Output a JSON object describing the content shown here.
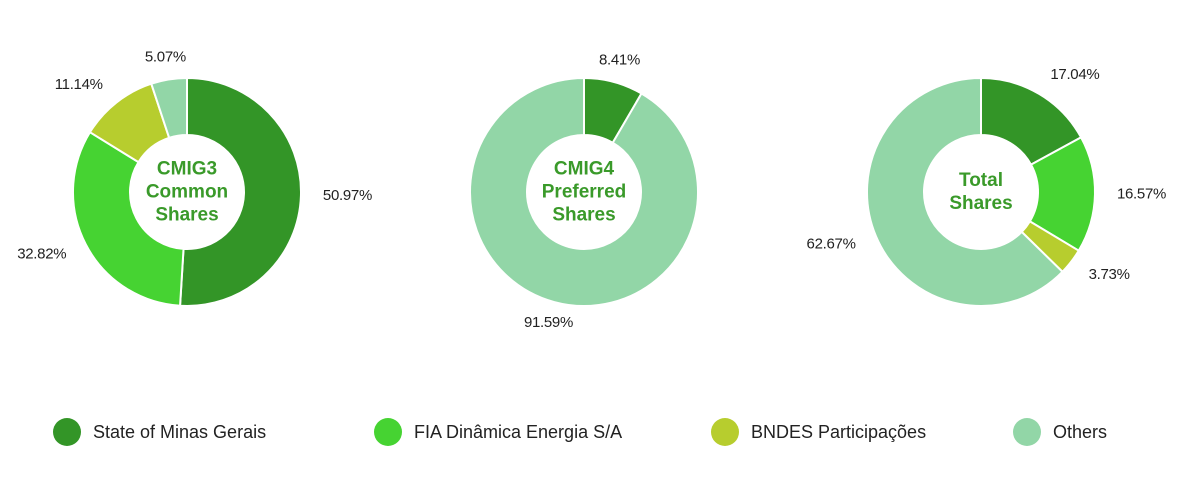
{
  "chart_data": [
    {
      "type": "pie",
      "title": "CMIG3 Common Shares",
      "values": [
        50.97,
        32.82,
        11.14,
        5.07
      ],
      "value_labels": [
        "50.97%",
        "32.82%",
        "11.14%",
        "5.07%"
      ]
    },
    {
      "type": "pie",
      "title": "CMIG4 Preferred Shares",
      "values": [
        8.41,
        null,
        null,
        91.59
      ],
      "value_labels": [
        "8.41%",
        null,
        null,
        "91.59%"
      ]
    },
    {
      "type": "pie",
      "title": "Total Shares",
      "values": [
        17.04,
        16.57,
        3.73,
        62.67
      ],
      "value_labels": [
        "17.04%",
        "16.57%",
        "3.73%",
        "62.67%"
      ]
    }
  ],
  "legend": [
    {
      "name": "State of Minas Gerais",
      "color": "#339527"
    },
    {
      "name": "FIA Dinâmica Energia S/A",
      "color": "#46d332"
    },
    {
      "name": "BNDES Participações",
      "color": "#b7cd2e"
    },
    {
      "name": "Others",
      "color": "#92d6a7"
    }
  ]
}
